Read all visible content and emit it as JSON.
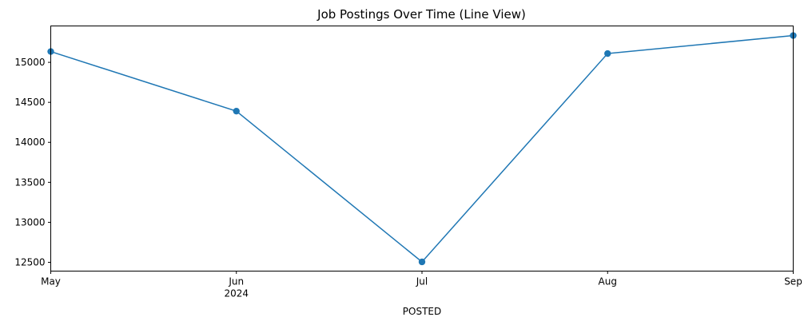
{
  "chart_data": {
    "type": "line",
    "title": "Job Postings Over Time (Line View)",
    "xlabel": "POSTED",
    "ylabel": "",
    "x": [
      "2024-05",
      "2024-06",
      "2024-07",
      "2024-08",
      "2024-09"
    ],
    "x_tick_labels": [
      "May",
      "Jun",
      "Jul",
      "Aug",
      "Sep"
    ],
    "x_tick_sublabels": [
      "",
      "2024",
      "",
      "",
      ""
    ],
    "series": [
      {
        "values": [
          15135,
          14390,
          12505,
          15110,
          15335
        ],
        "color": "#1f77b4",
        "marker": "circle"
      }
    ],
    "y_ticks": [
      12500,
      13000,
      13500,
      14000,
      14500,
      15000
    ],
    "ylim": [
      12390,
      15455
    ],
    "grid": false,
    "legend": "none"
  }
}
